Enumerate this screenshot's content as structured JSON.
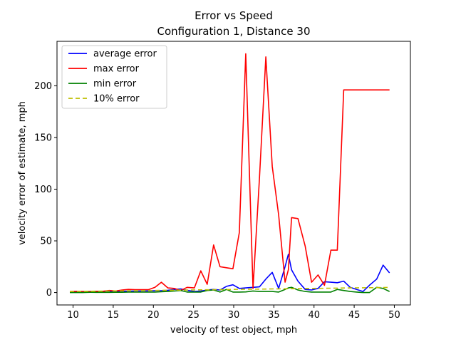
{
  "chart_data": {
    "type": "line",
    "title": "Error vs Speed",
    "subtitle": "Configuration 1, Distance 30",
    "xlabel": "velocity of test object, mph",
    "ylabel": "velocity error of estimate, mph",
    "xlim": [
      8,
      52
    ],
    "ylim": [
      -12,
      243
    ],
    "xticks": [
      10,
      15,
      20,
      25,
      30,
      35,
      40,
      45,
      50
    ],
    "yticks": [
      0,
      50,
      100,
      150,
      200
    ],
    "grid": false,
    "legend_position": "top-left",
    "x": [
      9.6,
      10.4,
      11.2,
      12.1,
      12.9,
      13.7,
      14.5,
      15.3,
      16.1,
      16.9,
      17.7,
      18.6,
      19.4,
      20.2,
      21.0,
      21.8,
      22.6,
      23.4,
      24.2,
      25.1,
      25.9,
      26.7,
      27.5,
      28.3,
      29.1,
      29.9,
      30.7,
      31.5,
      32.4,
      33.2,
      34.0,
      34.8,
      35.6,
      36.4,
      36.8,
      37.2,
      38.0,
      38.9,
      39.7,
      40.5,
      41.3,
      42.1,
      42.9,
      43.7,
      44.5,
      45.3,
      46.1,
      46.9,
      47.8,
      48.6,
      49.4
    ],
    "series": [
      {
        "name": "average error",
        "color": "#0000ff",
        "style": "solid",
        "values": [
          0.5,
          0.6,
          0.6,
          0.6,
          0.7,
          0.8,
          1.0,
          1.1,
          1.2,
          1.3,
          1.4,
          1.5,
          1.6,
          1.7,
          1.8,
          2.2,
          3.0,
          3.5,
          2.2,
          1.0,
          1.5,
          2.5,
          3.0,
          2.5,
          6.0,
          7.5,
          4.0,
          4.5,
          5.0,
          5.5,
          13.0,
          19.5,
          4.0,
          25.0,
          37.0,
          22.0,
          11.0,
          3.0,
          2.5,
          4.0,
          10.5,
          10.0,
          9.5,
          11.0,
          5.0,
          3.0,
          1.0,
          7.0,
          13.0,
          26.5,
          19.0
        ]
      },
      {
        "name": "max error",
        "color": "#ff0000",
        "style": "solid",
        "values": [
          1.0,
          1.2,
          1.0,
          1.0,
          1.2,
          1.2,
          2.0,
          1.5,
          2.5,
          3.0,
          2.8,
          2.8,
          2.8,
          5.0,
          10.0,
          4.5,
          4.0,
          2.0,
          5.0,
          4.5,
          21.0,
          8.0,
          46.0,
          25.0,
          24.0,
          23.0,
          58.0,
          231.0,
          4.0,
          110.0,
          228.0,
          122.0,
          75.0,
          10.0,
          22.0,
          72.5,
          71.5,
          45.0,
          10.0,
          17.0,
          7.0,
          41.0,
          41.0,
          196.0,
          196.0,
          196.0,
          196.0,
          196.0,
          196.0,
          196.0,
          196.0
        ]
      },
      {
        "name": "min error",
        "color": "#008000",
        "style": "solid",
        "values": [
          0.0,
          0.0,
          0.0,
          0.3,
          0.2,
          0.2,
          0.2,
          0.3,
          0.3,
          0.4,
          0.4,
          0.4,
          0.4,
          0.4,
          0.8,
          1.0,
          1.5,
          2.0,
          0.5,
          0.5,
          0.5,
          2.0,
          2.5,
          0.5,
          3.0,
          0.5,
          0.5,
          0.6,
          1.5,
          1.0,
          1.0,
          1.0,
          0.5,
          3.0,
          4.5,
          5.0,
          2.5,
          1.0,
          0.5,
          0.5,
          0.5,
          0.5,
          3.0,
          2.0,
          1.0,
          0.5,
          0.0,
          0.0,
          5.0,
          4.0,
          1.0
        ]
      },
      {
        "name": "10% error",
        "color": "#bfbf00",
        "style": "dashed",
        "values": [
          0.96,
          1.04,
          1.12,
          1.21,
          1.29,
          1.37,
          1.45,
          1.53,
          1.61,
          1.69,
          1.77,
          1.86,
          1.94,
          2.02,
          2.1,
          2.18,
          2.26,
          2.34,
          2.42,
          2.51,
          2.59,
          2.67,
          2.75,
          2.83,
          2.91,
          2.99,
          3.07,
          3.15,
          3.24,
          3.32,
          3.4,
          3.48,
          3.56,
          3.64,
          3.68,
          3.72,
          3.8,
          3.89,
          3.97,
          4.05,
          4.13,
          4.21,
          4.29,
          4.37,
          4.45,
          4.53,
          4.61,
          4.69,
          4.78,
          4.86,
          4.94
        ]
      }
    ]
  }
}
